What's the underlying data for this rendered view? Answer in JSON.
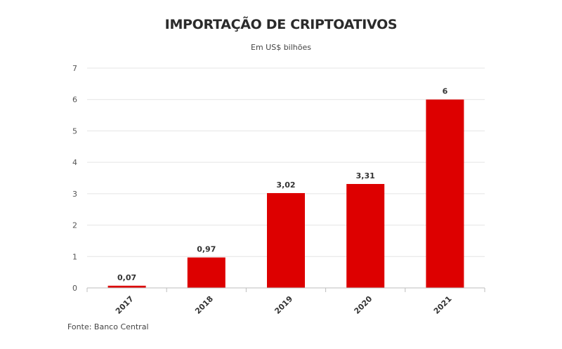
{
  "chart_data": {
    "type": "bar",
    "title": "IMPORTAÇÃO DE CRIPTOATIVOS",
    "subtitle": "Em US$ bilhões",
    "source": "Fonte: Banco Central",
    "categories": [
      "2017",
      "2018",
      "2019",
      "2020",
      "2021"
    ],
    "values": [
      0.07,
      0.97,
      3.02,
      3.31,
      6
    ],
    "data_labels": [
      "0,07",
      "0,97",
      "3,02",
      "3,31",
      "6"
    ],
    "yticks": [
      0,
      1,
      2,
      3,
      4,
      5,
      6,
      7
    ],
    "ylim": [
      0,
      7
    ],
    "grid": true,
    "bar_color": "#dd0000"
  }
}
